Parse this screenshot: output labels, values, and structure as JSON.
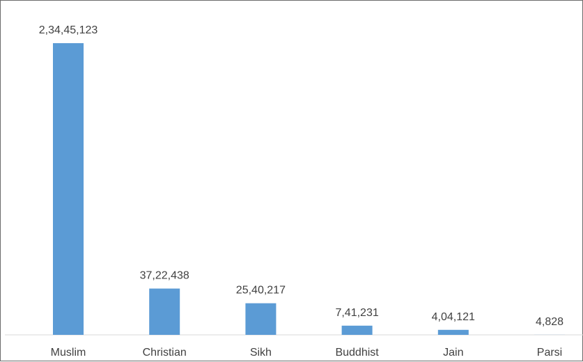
{
  "chart_data": {
    "type": "bar",
    "title": "",
    "xlabel": "",
    "ylabel": "",
    "categories": [
      "Muslim",
      "Christian",
      "Sikh",
      "Buddhist",
      "Jain",
      "Parsi"
    ],
    "values": [
      23445123,
      3722438,
      2540217,
      741231,
      404121,
      4828
    ],
    "value_labels": [
      "2,34,45,123",
      "37,22,438",
      "25,40,217",
      "7,41,231",
      "4,04,121",
      "4,828"
    ],
    "ylim": [
      0,
      23445123
    ],
    "bar_color": "#5b9bd5",
    "grid": false,
    "legend": "none"
  }
}
